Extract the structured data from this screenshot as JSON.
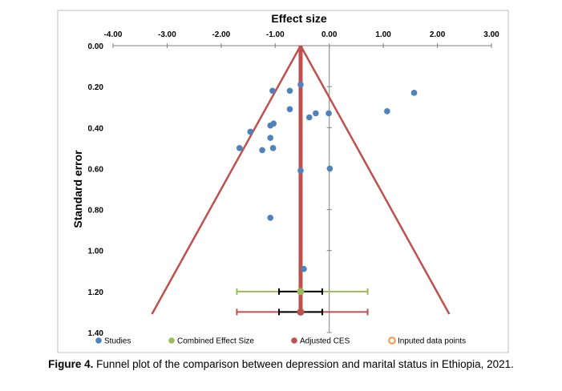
{
  "chart_data": {
    "type": "scatter",
    "title": "Effect size",
    "xlabel": "",
    "ylabel": "Standard error",
    "xlim": [
      -4.0,
      3.0
    ],
    "ylim": [
      0.0,
      1.4
    ],
    "y_reversed": true,
    "x_axis_position": "top",
    "x_ticks": [
      "-4.00",
      "-3.00",
      "-2.00",
      "-1.00",
      "0.00",
      "1.00",
      "2.00",
      "3.00"
    ],
    "y_ticks": [
      "0.00",
      "0.20",
      "0.40",
      "0.60",
      "0.80",
      "1.00",
      "1.20",
      "1.40"
    ],
    "grid": false,
    "legend_position": "bottom",
    "legend": [
      "Studies",
      "Combined Effect Size",
      "Adjusted CES",
      "Inputed data points"
    ],
    "colors": {
      "studies": "#4f81bd",
      "combined": "#9bbb59",
      "adjusted": "#c0504d",
      "inputed": "#f79646",
      "axis": "#808080"
    },
    "funnel": {
      "apex": [
        -0.53,
        0.0
      ],
      "base_left": [
        -3.28,
        1.31
      ],
      "base_right": [
        2.22,
        1.31
      ]
    },
    "studies": [
      {
        "x": -0.53,
        "y": 0.19
      },
      {
        "x": -0.73,
        "y": 0.22
      },
      {
        "x": -1.05,
        "y": 0.22
      },
      {
        "x": 1.57,
        "y": 0.23
      },
      {
        "x": -0.73,
        "y": 0.31
      },
      {
        "x": 1.07,
        "y": 0.32
      },
      {
        "x": -0.01,
        "y": 0.33
      },
      {
        "x": -0.25,
        "y": 0.33
      },
      {
        "x": -0.37,
        "y": 0.35
      },
      {
        "x": -1.03,
        "y": 0.38
      },
      {
        "x": -1.09,
        "y": 0.39
      },
      {
        "x": -1.46,
        "y": 0.42
      },
      {
        "x": -1.09,
        "y": 0.45
      },
      {
        "x": -1.66,
        "y": 0.5
      },
      {
        "x": -1.04,
        "y": 0.5
      },
      {
        "x": -1.24,
        "y": 0.51
      },
      {
        "x": -0.53,
        "y": 0.61
      },
      {
        "x": 0.01,
        "y": 0.6
      },
      {
        "x": -1.09,
        "y": 0.84
      },
      {
        "x": -0.47,
        "y": 1.09
      }
    ],
    "combined_effect": {
      "x": -0.53,
      "y": 1.2,
      "ci_outer": [
        -1.71,
        0.71
      ],
      "ci_inner": [
        -0.93,
        -0.13
      ]
    },
    "adjusted_ces": {
      "x": -0.53,
      "y": 1.3,
      "ci_outer": [
        -1.71,
        0.71
      ],
      "ci_inner": [
        -0.93,
        -0.13
      ]
    }
  },
  "caption": {
    "label": "Figure 4.",
    "text": " Funnel plot of the comparison between depression and marital status in Ethiopia, 2021."
  }
}
